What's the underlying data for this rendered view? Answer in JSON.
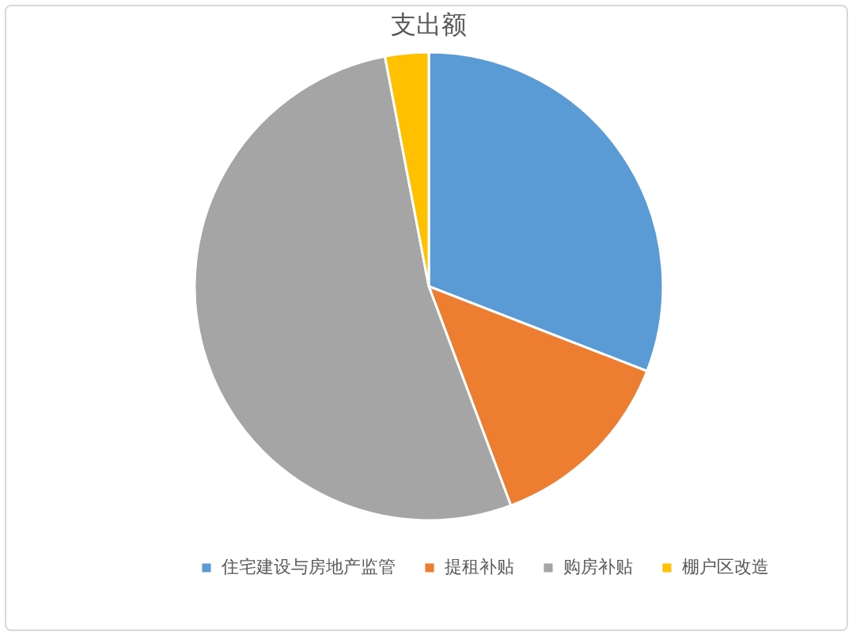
{
  "chart_data": {
    "type": "pie",
    "title": "支出额",
    "categories": [
      "住宅建设与房地产监管",
      "提租补贴",
      "购房补贴",
      "棚户区改造"
    ],
    "values": [
      30.9,
      13.4,
      52.7,
      3.0
    ],
    "colors": [
      "#5b9bd5",
      "#ed7d31",
      "#a5a5a5",
      "#ffc000"
    ],
    "legend": "bottom"
  }
}
